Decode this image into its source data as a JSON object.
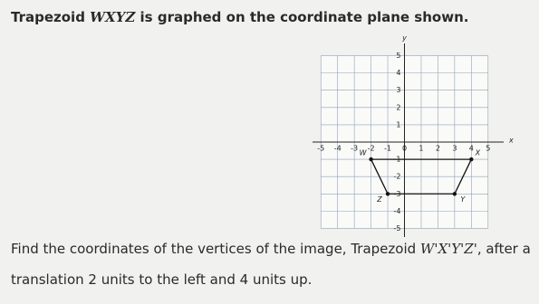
{
  "question": {
    "intro_before": "Trapezoid ",
    "intro_name": "WXYZ",
    "intro_after": " is graphed on the coordinate plane shown.",
    "line1_before": "Find the coordinates of the vertices of the image, Trapezoid ",
    "line1_name": "W'X'Y'Z'",
    "line1_after": ", after a",
    "line2": "translation 2 units to the left and 4 units up."
  },
  "graph": {
    "x_label": "x",
    "y_label": "y",
    "xlim": [
      -5.5,
      5.5
    ],
    "ylim": [
      -5.5,
      5.5
    ],
    "xticks": [
      -5,
      -4,
      -3,
      -2,
      -1,
      0,
      1,
      2,
      3,
      4,
      5
    ],
    "yticks": [
      -5,
      -4,
      -3,
      -2,
      -1,
      1,
      2,
      3,
      4,
      5
    ],
    "vertices": [
      {
        "label": "W",
        "x": -2,
        "y": -1
      },
      {
        "label": "X",
        "x": 4,
        "y": -1
      },
      {
        "label": "Y",
        "x": 3,
        "y": -3
      },
      {
        "label": "Z",
        "x": -1,
        "y": -3
      }
    ]
  }
}
